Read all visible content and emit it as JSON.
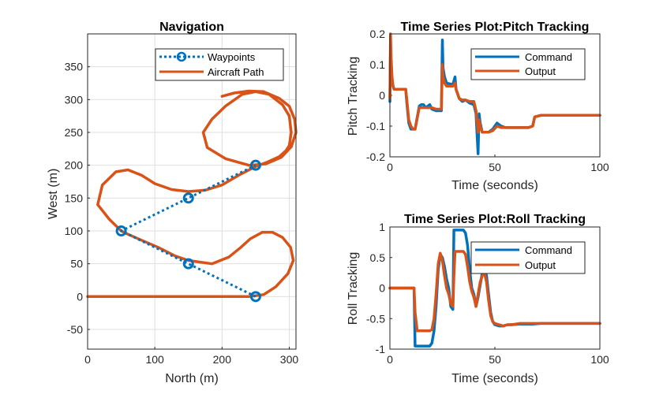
{
  "chart_data": [
    {
      "type": "line",
      "title": "Navigation",
      "xlabel": "North (m)",
      "ylabel": "West (m)",
      "xlim": [
        0,
        310
      ],
      "ylim": [
        -80,
        400
      ],
      "xticks": [
        0,
        100,
        200,
        300
      ],
      "yticks": [
        -50,
        0,
        50,
        100,
        150,
        200,
        250,
        300,
        350
      ],
      "grid": true,
      "legend_position": "top-right",
      "colors": {
        "waypoints": "#0072BD",
        "path": "#D95319"
      },
      "series": [
        {
          "name": "Waypoints",
          "style": "dotted-circles",
          "x": [
            250,
            150,
            50,
            150,
            250
          ],
          "y": [
            0,
            50,
            100,
            150,
            200
          ]
        },
        {
          "name": "Aircraft Path",
          "style": "solid",
          "x": [
            0,
            60,
            120,
            180,
            240,
            262,
            280,
            298,
            306,
            302,
            290,
            275,
            260,
            242,
            228,
            210,
            185,
            150,
            130,
            105,
            80,
            60,
            50,
            32,
            15,
            22,
            42,
            60,
            80,
            100,
            125,
            150,
            175,
            200,
            225,
            250,
            268,
            285,
            295,
            300,
            303,
            300,
            290,
            270,
            250,
            230,
            205,
            185,
            172,
            178,
            205,
            240,
            265,
            288,
            303,
            310,
            308,
            300,
            285,
            262,
            240,
            218,
            200
          ],
          "y": [
            0,
            0,
            0,
            0,
            0,
            3,
            15,
            35,
            55,
            75,
            90,
            98,
            98,
            88,
            75,
            60,
            50,
            55,
            62,
            75,
            86,
            95,
            100,
            118,
            140,
            170,
            190,
            193,
            185,
            172,
            163,
            160,
            162,
            170,
            185,
            198,
            205,
            213,
            222,
            230,
            250,
            275,
            292,
            308,
            312,
            308,
            290,
            270,
            250,
            227,
            210,
            200,
            202,
            212,
            228,
            250,
            270,
            290,
            302,
            312,
            313,
            310,
            305
          ]
        }
      ]
    },
    {
      "type": "line",
      "title": "Time Series Plot:Pitch Tracking",
      "xlabel": "Time (seconds)",
      "ylabel": "Pitch Tracking",
      "xlim": [
        0,
        100
      ],
      "ylim": [
        -0.2,
        0.2
      ],
      "xticks": [
        0,
        50,
        100
      ],
      "yticks": [
        -0.2,
        -0.1,
        0,
        0.1,
        0.2
      ],
      "grid": false,
      "legend_position": "top-right",
      "colors": {
        "command": "#0072BD",
        "output": "#D95319"
      },
      "series": [
        {
          "name": "Command",
          "x": [
            0,
            0.3,
            0.6,
            1,
            1.5,
            2,
            3,
            7.5,
            8,
            9,
            10,
            11,
            12,
            14,
            15,
            16,
            17,
            18,
            19,
            20,
            22,
            24.5,
            25,
            25.3,
            26,
            27,
            30,
            31,
            31.5,
            33,
            34.5,
            36,
            38,
            40,
            41,
            42,
            42.5,
            43,
            44,
            45,
            47,
            49,
            51,
            53,
            55,
            60,
            66,
            68,
            69,
            72,
            80,
            90,
            100
          ],
          "y": [
            -0.02,
            0.15,
            0.1,
            0.05,
            0.03,
            0.02,
            0.02,
            0.02,
            -0.02,
            -0.09,
            -0.11,
            -0.11,
            -0.11,
            -0.035,
            -0.03,
            -0.03,
            -0.04,
            -0.035,
            -0.03,
            -0.045,
            -0.05,
            -0.05,
            0.18,
            0.09,
            0.06,
            0.04,
            0.035,
            0.06,
            0.02,
            -0.01,
            -0.02,
            -0.015,
            -0.025,
            -0.03,
            -0.06,
            -0.19,
            -0.06,
            -0.09,
            -0.12,
            -0.12,
            -0.12,
            -0.11,
            -0.09,
            -0.1,
            -0.105,
            -0.105,
            -0.105,
            -0.1,
            -0.07,
            -0.065,
            -0.065,
            -0.065,
            -0.065
          ]
        },
        {
          "name": "Output",
          "x": [
            0,
            0.3,
            0.6,
            1,
            1.5,
            2,
            3,
            7.5,
            8,
            9,
            10,
            11,
            12,
            14,
            15,
            16,
            17,
            18,
            19,
            20,
            22,
            24.5,
            25,
            25.3,
            26,
            27,
            30,
            31,
            31.5,
            33,
            34.5,
            36,
            38,
            40,
            41,
            42,
            42.5,
            43,
            44,
            45,
            47,
            49,
            51,
            53,
            55,
            60,
            66,
            68,
            69,
            72,
            80,
            90,
            100
          ],
          "y": [
            -0.01,
            0.2,
            0.12,
            0.06,
            0.03,
            0.02,
            0.02,
            0.02,
            -0.01,
            -0.08,
            -0.1,
            -0.11,
            -0.11,
            -0.04,
            -0.04,
            -0.04,
            -0.04,
            -0.04,
            -0.04,
            -0.04,
            -0.045,
            -0.045,
            0.1,
            0.06,
            0.04,
            0.03,
            0.03,
            0.04,
            0.02,
            -0.01,
            -0.015,
            -0.015,
            -0.02,
            -0.02,
            -0.05,
            -0.12,
            -0.08,
            -0.1,
            -0.12,
            -0.12,
            -0.12,
            -0.115,
            -0.1,
            -0.105,
            -0.105,
            -0.105,
            -0.105,
            -0.1,
            -0.07,
            -0.065,
            -0.065,
            -0.065,
            -0.065
          ]
        }
      ]
    },
    {
      "type": "line",
      "title": "Time Series Plot:Roll Tracking",
      "xlabel": "Time (seconds)",
      "ylabel": "Roll Tracking",
      "xlim": [
        0,
        100
      ],
      "ylim": [
        -1,
        1
      ],
      "xticks": [
        0,
        50,
        100
      ],
      "yticks": [
        -1,
        -0.5,
        0,
        0.5,
        1
      ],
      "grid": false,
      "legend_position": "top-right",
      "colors": {
        "command": "#0072BD",
        "output": "#D95319"
      },
      "series": [
        {
          "name": "Command",
          "x": [
            0,
            11.5,
            12,
            13,
            18,
            19,
            20,
            21,
            22,
            23,
            24,
            25,
            26,
            27,
            28,
            29,
            30,
            30.5,
            31,
            35,
            36,
            37,
            38,
            39,
            40,
            41,
            42,
            43,
            44,
            45,
            46,
            47,
            48,
            49,
            50,
            52,
            54,
            56,
            58,
            62,
            68,
            72,
            80,
            90,
            100
          ],
          "y": [
            0,
            0,
            -0.95,
            -0.95,
            -0.95,
            -0.95,
            -0.9,
            -0.7,
            -0.3,
            0.3,
            0.55,
            0.5,
            0.35,
            0.15,
            0.0,
            -0.3,
            -0.35,
            0.95,
            0.95,
            0.95,
            0.9,
            0.7,
            0.3,
            0.0,
            -0.1,
            -0.3,
            -0.15,
            0.05,
            0.25,
            0.35,
            0.2,
            -0.1,
            -0.4,
            -0.55,
            -0.6,
            -0.62,
            -0.62,
            -0.6,
            -0.6,
            -0.59,
            -0.59,
            -0.58,
            -0.58,
            -0.58,
            -0.58
          ]
        },
        {
          "name": "Output",
          "x": [
            0,
            11.5,
            12,
            13,
            18,
            19,
            20,
            21,
            22,
            23,
            24,
            25,
            26,
            27,
            28,
            29,
            30,
            30.5,
            31,
            35,
            36,
            37,
            38,
            39,
            40,
            41,
            42,
            43,
            44,
            45,
            46,
            47,
            48,
            49,
            50,
            52,
            54,
            56,
            58,
            62,
            68,
            72,
            80,
            90,
            100
          ],
          "y": [
            0,
            0,
            -0.4,
            -0.7,
            -0.7,
            -0.7,
            -0.68,
            -0.5,
            -0.1,
            0.4,
            0.57,
            0.45,
            0.2,
            0.0,
            -0.1,
            -0.25,
            -0.3,
            0.2,
            0.6,
            0.6,
            0.55,
            0.35,
            0.1,
            -0.05,
            -0.15,
            -0.3,
            -0.1,
            0.1,
            0.2,
            0.25,
            0.1,
            -0.2,
            -0.45,
            -0.55,
            -0.58,
            -0.6,
            -0.62,
            -0.6,
            -0.6,
            -0.58,
            -0.58,
            -0.58,
            -0.58,
            -0.58,
            -0.58
          ]
        }
      ]
    }
  ]
}
